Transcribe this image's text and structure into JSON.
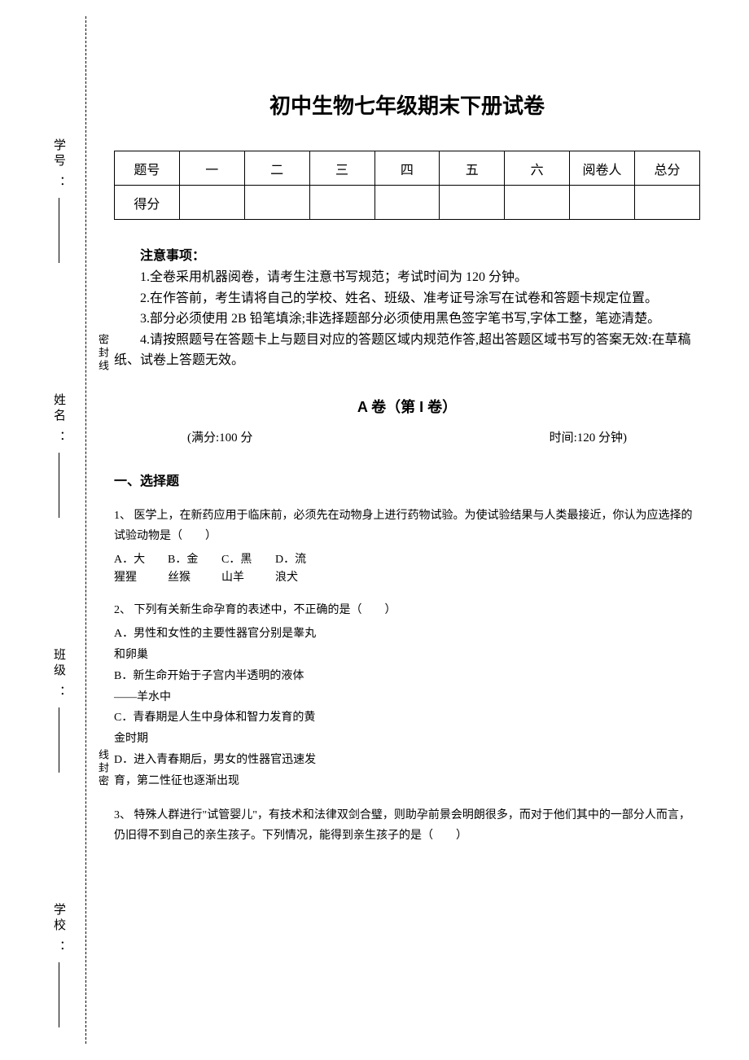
{
  "colors": {
    "bg": "#ffffff",
    "text": "#000000",
    "border": "#000000"
  },
  "fonts": {
    "title": "KaiTi",
    "body": "SimSun",
    "heading": "SimHei",
    "title_size": 26,
    "body_size": 14
  },
  "sidebar": {
    "fields": [
      {
        "label": "学号",
        "suffix": "："
      },
      {
        "label": "姓名",
        "suffix": "："
      },
      {
        "label": "班级",
        "suffix": "："
      },
      {
        "label": "学校",
        "suffix": "："
      }
    ],
    "seal_top": "密封线",
    "seal_bottom": "线封密"
  },
  "title": "初中生物七年级期末下册试卷",
  "score_table": {
    "header_label": "题号",
    "cols": [
      "一",
      "二",
      "三",
      "四",
      "五",
      "六",
      "阅卷人",
      "总分"
    ],
    "row2_label": "得分"
  },
  "notes": {
    "heading": "注意事项：",
    "items": [
      "1.全卷采用机器阅卷，请考生注意书写规范；考试时间为 120 分钟。",
      "2.在作答前，考生请将自己的学校、姓名、班级、准考证号涂写在试卷和答题卡规定位置。",
      "3.部分必须使用 2B 铅笔填涂;非选择题部分必须使用黑色签字笔书写,字体工整，笔迹清楚。",
      "4.请按照题号在答题卡上与题目对应的答题区域内规范作答,超出答题区域书写的答案无效:在草稿纸、试卷上答题无效。"
    ]
  },
  "section_a": {
    "heading": "A 卷（第 I 卷）",
    "full_marks": "(满分:100 分",
    "time": "时间:120 分钟)"
  },
  "part1": {
    "heading": "一、选择题"
  },
  "q1": {
    "stem": "1、 医学上，在新药应用于临床前，必须先在动物身上进行药物试验。为使试验结果与人类最接近，你认为应选择的试验动物是（　　）",
    "opts": [
      "A．大猩猩",
      "B．金丝猴",
      "C．黑山羊",
      "D．流浪犬"
    ]
  },
  "q2": {
    "stem": "2、 下列有关新生命孕育的表述中，不正确的是（　　）",
    "opts": [
      "A．男性和女性的主要性器官分别是睾丸和卵巢",
      "B．新生命开始于子宫内半透明的液体——羊水中",
      "C．青春期是人生中身体和智力发育的黄金时期",
      "D．进入青春期后，男女的性器官迅速发育，第二性征也逐渐出现"
    ]
  },
  "q3": {
    "stem": "3、 特殊人群进行\"试管婴儿\"，有技术和法律双剑合璧，则助孕前景会明朗很多，而对于他们其中的一部分人而言，仍旧得不到自己的亲生孩子。下列情况，能得到亲生孩子的是（　　）"
  }
}
